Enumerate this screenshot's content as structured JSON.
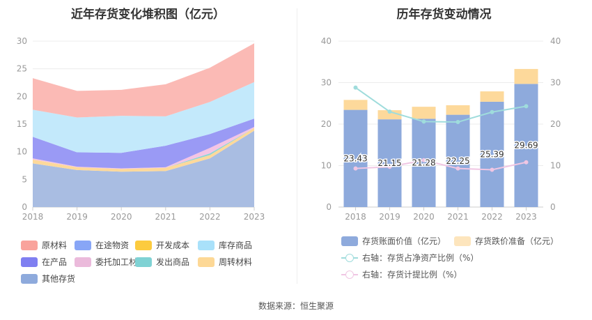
{
  "left_panel": {
    "title": "近年存货变化堆积图（亿元）"
  },
  "right_panel": {
    "title": "历年存货变动情况"
  },
  "source_text": "数据来源：恒生聚源",
  "chart_data": [
    {
      "type": "area",
      "title": "近年存货变化堆积图（亿元）",
      "x": [
        "2018",
        "2019",
        "2020",
        "2021",
        "2022",
        "2023"
      ],
      "ylim": [
        0,
        30
      ],
      "yticks": [
        0,
        5,
        10,
        15,
        20,
        25,
        30
      ],
      "stacked": true,
      "series": [
        {
          "name": "其他存货",
          "color": "#a9bde2",
          "values": [
            7.9,
            6.7,
            6.4,
            6.5,
            8.8,
            13.8
          ]
        },
        {
          "name": "周转材料",
          "color": "#fdd99b",
          "values": [
            0.7,
            0.5,
            0.5,
            0.6,
            0.6,
            0.5
          ]
        },
        {
          "name": "发出商品",
          "color": "#8cd4d6",
          "values": [
            0.0,
            0.0,
            0.0,
            0.0,
            0.3,
            0.0
          ]
        },
        {
          "name": "委托加工材料",
          "color": "#f4c4e4",
          "values": [
            0.2,
            0.1,
            0.1,
            0.1,
            1.0,
            0.2
          ]
        },
        {
          "name": "在产品",
          "color": "#9a9af5",
          "values": [
            3.9,
            2.6,
            2.8,
            3.9,
            2.5,
            1.5
          ]
        },
        {
          "name": "开发成本",
          "color": "#fdd24a",
          "values": [
            0.0,
            0.0,
            0.0,
            0.0,
            0.0,
            0.0
          ]
        },
        {
          "name": "在途物资",
          "color": "#8fb2f5",
          "values": [
            0.0,
            0.0,
            0.0,
            0.0,
            0.0,
            0.0
          ]
        },
        {
          "name": "库存商品",
          "color": "#c3e9fb",
          "values": [
            4.9,
            6.3,
            6.7,
            5.3,
            5.8,
            6.6
          ]
        },
        {
          "name": "原材料",
          "color": "#fbbab5",
          "values": [
            5.7,
            4.8,
            4.7,
            5.8,
            6.2,
            7.0
          ]
        }
      ],
      "legend": {
        "position": "bottom",
        "items": [
          {
            "name": "原材料",
            "color": "#f9a39c"
          },
          {
            "name": "在途物资",
            "color": "#88a6f6"
          },
          {
            "name": "开发成本",
            "color": "#fccb3f"
          },
          {
            "name": "库存商品",
            "color": "#a9e1fa"
          },
          {
            "name": "在产品",
            "color": "#7f7ff1"
          },
          {
            "name": "委托加工材料",
            "color": "#ebbadb"
          },
          {
            "name": "发出商品",
            "color": "#7fd2d4"
          },
          {
            "name": "周转材料",
            "color": "#fdd896"
          },
          {
            "name": "其他存货",
            "color": "#8eaadc"
          }
        ]
      }
    },
    {
      "type": "bar",
      "title": "历年存货变动情况",
      "categories": [
        "2018",
        "2019",
        "2020",
        "2021",
        "2022",
        "2023"
      ],
      "ylim": [
        0,
        40
      ],
      "yticks": [
        0,
        10,
        20,
        30,
        40
      ],
      "y2lim": [
        0,
        40
      ],
      "y2ticks": [
        0,
        10,
        20,
        30,
        40
      ],
      "stacked": true,
      "series": [
        {
          "name": "存货账面价值（亿元）",
          "type": "bar",
          "color": "#8eaadc",
          "values": [
            23.43,
            21.15,
            21.28,
            22.25,
            25.39,
            29.69
          ],
          "labels": [
            "23.43",
            "21.15",
            "21.28",
            "22.25",
            "25.39",
            "29.69"
          ]
        },
        {
          "name": "存货跌价准备（亿元）",
          "type": "bar",
          "color": "#fdd99b",
          "values": [
            2.4,
            2.2,
            2.9,
            2.3,
            2.5,
            3.6
          ]
        },
        {
          "name": "右轴：存货占净资产比例（%）",
          "type": "line",
          "axis": "right",
          "color": "#9fdcdc",
          "values": [
            28.8,
            23.0,
            20.6,
            20.5,
            22.9,
            24.3
          ]
        },
        {
          "name": "右轴：存货计提比例（%）",
          "type": "line",
          "axis": "right",
          "color": "#f0c6e3",
          "values": [
            9.3,
            9.7,
            11.3,
            9.3,
            9.0,
            10.8
          ]
        }
      ],
      "legend": {
        "position": "bottom",
        "items": [
          {
            "name": "存货账面价值（亿元）",
            "color": "#8eaadc",
            "kind": "box"
          },
          {
            "name": "存货跌价准备（亿元）",
            "color": "#fde5bd",
            "kind": "box"
          },
          {
            "name": "右轴：存货占净资产比例（%）",
            "color": "#9fdcdc",
            "kind": "line"
          },
          {
            "name": "右轴：存货计提比例（%）",
            "color": "#f0c6e3",
            "kind": "line"
          }
        ]
      }
    }
  ]
}
